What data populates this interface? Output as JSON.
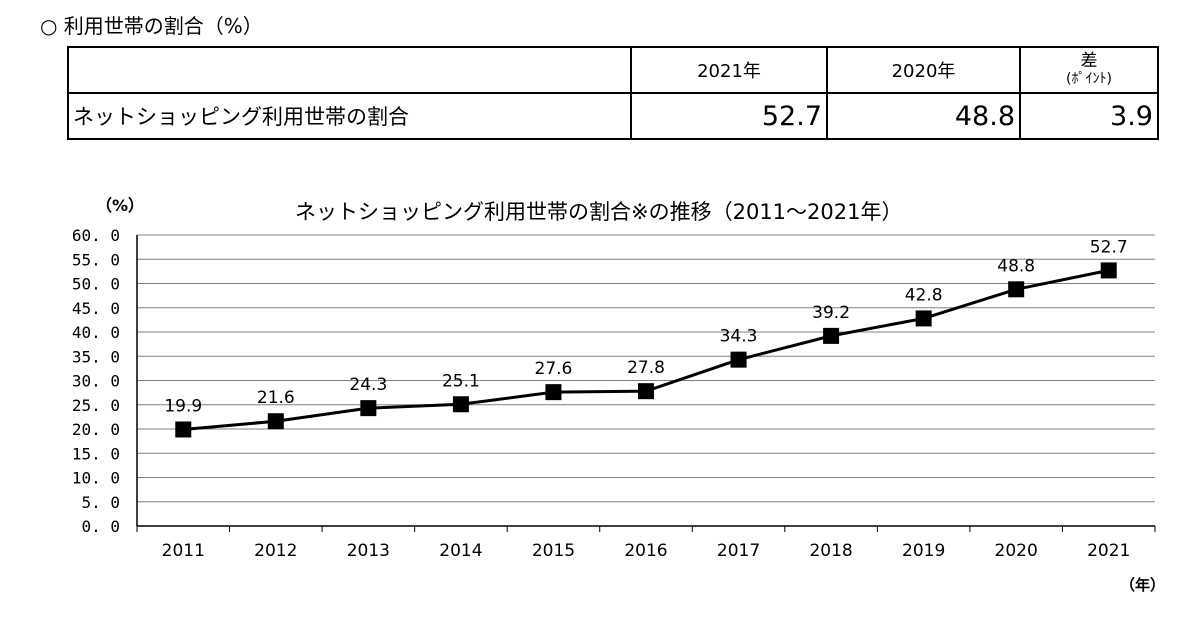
{
  "heading": "○ 利用世帯の割合（%）",
  "summary_table": {
    "headers": [
      "",
      "2021年",
      "2020年"
    ],
    "diff_header": {
      "title": "差",
      "unit": "(ﾎﾟｲﾝﾄ)"
    },
    "row": {
      "label": "ネットショッピング利用世帯の割合",
      "values": [
        "52.7",
        "48.8",
        "3.9"
      ]
    }
  },
  "chart_data": {
    "type": "line",
    "title": "ネットショッピング利用世帯の割合※の推移（2011～2021年）",
    "ylabel": "（%）",
    "xlabel": "（年）",
    "categories": [
      "2011",
      "2012",
      "2013",
      "2014",
      "2015",
      "2016",
      "2017",
      "2018",
      "2019",
      "2020",
      "2021"
    ],
    "series": [
      {
        "values": [
          19.9,
          21.6,
          24.3,
          25.1,
          27.6,
          27.8,
          34.3,
          39.2,
          42.8,
          48.8,
          52.7
        ]
      }
    ],
    "data_labels": [
      "19.9",
      "21.6",
      "24.3",
      "25.1",
      "27.6",
      "27.8",
      "34.3",
      "39.2",
      "42.8",
      "48.8",
      "52.7"
    ],
    "ylim": [
      0,
      60
    ],
    "y_ticks": [
      "0. 0",
      "5. 0",
      "10. 0",
      "15. 0",
      "20. 0",
      "25. 0",
      "30. 0",
      "35. 0",
      "40. 0",
      "45. 0",
      "50. 0",
      "55. 0",
      "60. 0"
    ],
    "grid": true,
    "marker": "square",
    "colors": {
      "line": "#000000",
      "marker": "#000000",
      "grid": "#808080"
    }
  }
}
